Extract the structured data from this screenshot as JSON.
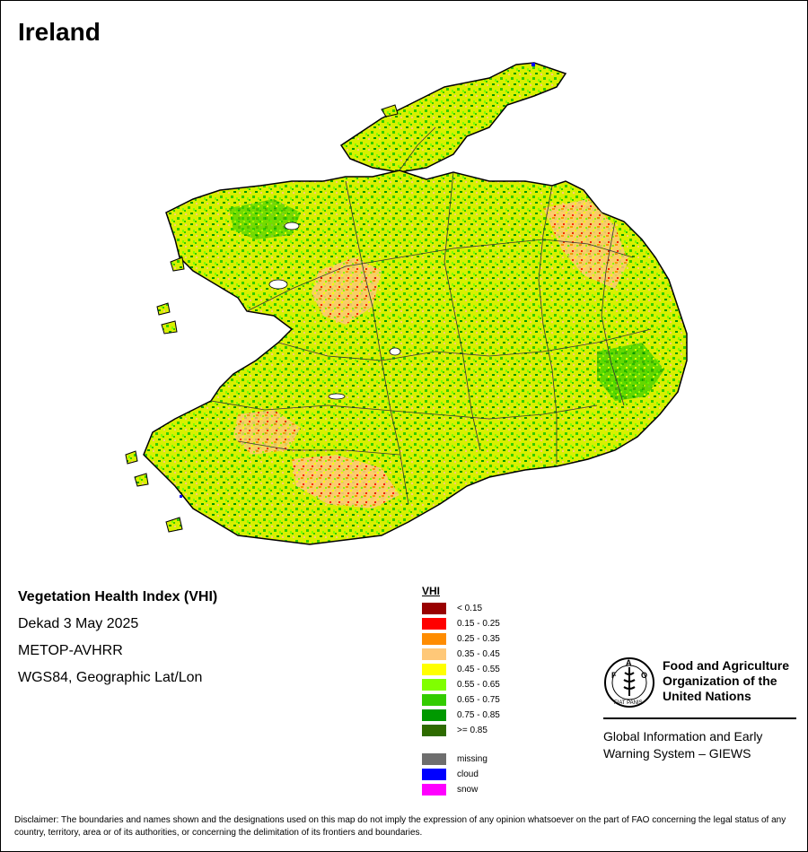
{
  "page": {
    "title": "Ireland"
  },
  "map_info": {
    "index_name": "Vegetation Health Index (VHI)",
    "period": "Dekad 3 May 2025",
    "sensor": "METOP-AVHRR",
    "projection": "WGS84, Geographic Lat/Lon"
  },
  "legend": {
    "title": "VHI",
    "classes": [
      {
        "label": "< 0.15",
        "color": "#990000"
      },
      {
        "label": "0.15 - 0.25",
        "color": "#ff0000"
      },
      {
        "label": "0.25 - 0.35",
        "color": "#ff8c00"
      },
      {
        "label": "0.35 - 0.45",
        "color": "#ffc878"
      },
      {
        "label": "0.45 - 0.55",
        "color": "#ffff00"
      },
      {
        "label": "0.55 - 0.65",
        "color": "#80ff00"
      },
      {
        "label": "0.65 - 0.75",
        "color": "#33cc00"
      },
      {
        "label": "0.75 - 0.85",
        "color": "#009900"
      },
      {
        "label": ">= 0.85",
        "color": "#2e6b00"
      }
    ],
    "other": [
      {
        "label": "missing",
        "color": "#6e6e6e"
      },
      {
        "label": "cloud",
        "color": "#0000ff"
      },
      {
        "label": "snow",
        "color": "#ff00ff"
      }
    ]
  },
  "organization": {
    "logo_text": "FAO",
    "logo_motto": "FIAT PANIS",
    "name": "Food and Agriculture Organization of the United Nations",
    "system": "Global Information and Early Warning System – GIEWS"
  },
  "disclaimer": "Disclaimer: The boundaries and names shown and the designations used on this map do not imply the expression of any opinion whatsoever on the part of FAO concerning the legal status of any country, territory, area or of its authorities, or concerning the delimitation of its frontiers and boundaries."
}
